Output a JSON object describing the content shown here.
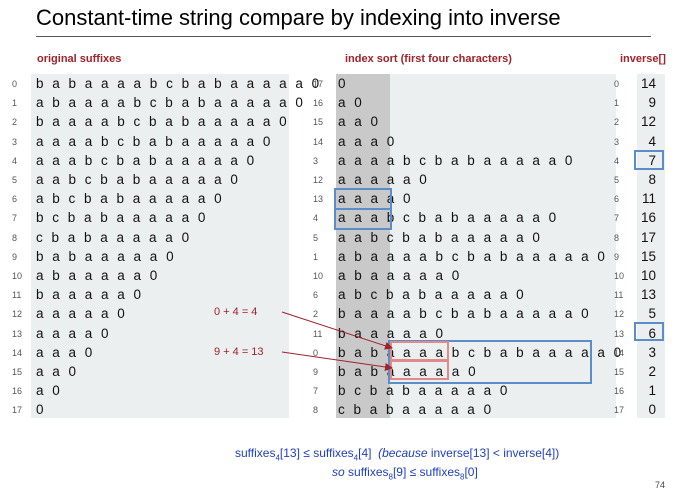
{
  "title": "Constant-time string compare by indexing into inverse",
  "headers": {
    "original": "original suffixes",
    "index_sort": "index sort (first four characters)",
    "inverse": "inverse[]"
  },
  "original_suffixes": [
    {
      "i": "0",
      "s": "babaaaabcbabaaaaa0"
    },
    {
      "i": "1",
      "s": "abaaaabcbabaaaaa0"
    },
    {
      "i": "2",
      "s": "baaaabcbabaaaaa0"
    },
    {
      "i": "3",
      "s": "aaaabcbabaaaaa0"
    },
    {
      "i": "4",
      "s": "aaabcbabaaaaa0"
    },
    {
      "i": "5",
      "s": "aabcbabaaaaa0"
    },
    {
      "i": "6",
      "s": "abcbabaaaaa0"
    },
    {
      "i": "7",
      "s": "bcbabaaaaa0"
    },
    {
      "i": "8",
      "s": "cbabaaaaa0"
    },
    {
      "i": "9",
      "s": "babaaaaa0"
    },
    {
      "i": "10",
      "s": "abaaaaa0"
    },
    {
      "i": "11",
      "s": "baaaaa0"
    },
    {
      "i": "12",
      "s": "aaaaa0"
    },
    {
      "i": "13",
      "s": "aaaa0"
    },
    {
      "i": "14",
      "s": "aaa0"
    },
    {
      "i": "15",
      "s": "aa0"
    },
    {
      "i": "16",
      "s": "a0"
    },
    {
      "i": "17",
      "s": "0"
    }
  ],
  "sorted_suffixes": [
    {
      "i": "17",
      "s": "0"
    },
    {
      "i": "16",
      "s": "a0"
    },
    {
      "i": "15",
      "s": "aa0"
    },
    {
      "i": "14",
      "s": "aaa0"
    },
    {
      "i": "3",
      "s": "aaaabcbabaaaaa0"
    },
    {
      "i": "12",
      "s": "aaaaa0"
    },
    {
      "i": "13",
      "s": "aaaa0"
    },
    {
      "i": "4",
      "s": "aaabcbabaaaaa0"
    },
    {
      "i": "5",
      "s": "aabcbabaaaaa0"
    },
    {
      "i": "1",
      "s": "abaaaabcbabaaaaa0"
    },
    {
      "i": "10",
      "s": "abaaaaa0"
    },
    {
      "i": "6",
      "s": "abcbabaaaaa0"
    },
    {
      "i": "2",
      "s": "baaaabcbabaaaaa0"
    },
    {
      "i": "11",
      "s": "baaaaa0"
    },
    {
      "i": "0",
      "s": "babaaaabcbabaaaaa0"
    },
    {
      "i": "9",
      "s": "babaaaaa0"
    },
    {
      "i": "7",
      "s": "bcbabaaaaa0"
    },
    {
      "i": "8",
      "s": "cbabaaaaa0"
    }
  ],
  "inverse": [
    {
      "i": "0",
      "v": "14"
    },
    {
      "i": "1",
      "v": "9"
    },
    {
      "i": "2",
      "v": "12"
    },
    {
      "i": "3",
      "v": "4"
    },
    {
      "i": "4",
      "v": "7"
    },
    {
      "i": "5",
      "v": "8"
    },
    {
      "i": "6",
      "v": "11"
    },
    {
      "i": "7",
      "v": "16"
    },
    {
      "i": "8",
      "v": "17"
    },
    {
      "i": "9",
      "v": "15"
    },
    {
      "i": "10",
      "v": "10"
    },
    {
      "i": "11",
      "v": "13"
    },
    {
      "i": "12",
      "v": "5"
    },
    {
      "i": "13",
      "v": "6"
    },
    {
      "i": "14",
      "v": "3"
    },
    {
      "i": "15",
      "v": "2"
    },
    {
      "i": "16",
      "v": "1"
    },
    {
      "i": "17",
      "v": "0"
    }
  ],
  "annotations": {
    "eq1": "0 + 4 = 4",
    "eq2": "9 + 4 = 13"
  },
  "footer": {
    "line1_a": "suffixes",
    "line1_sub1": "4",
    "line1_b": "[13] ≤ suffixes",
    "line1_sub2": "4",
    "line1_c": "[4]",
    "line1_because": "(because",
    "line1_d": "inverse[13] < inverse[4])",
    "line2_so": "so",
    "line2_a": "suffixes",
    "line2_sub1": "8",
    "line2_b": "[9] ≤ suffixes",
    "line2_sub2": "8",
    "line2_c": "[0]"
  },
  "page_number": "74",
  "colors": {
    "header": "#a0222a",
    "box_blue": "#5b8ec9",
    "box_red": "#e08a8a",
    "footer": "#1f3fbf"
  }
}
